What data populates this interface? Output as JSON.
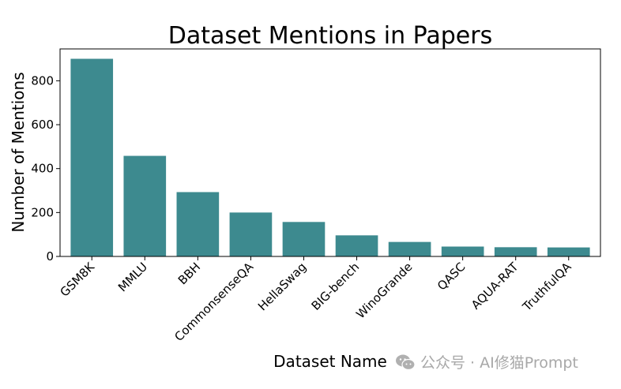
{
  "chart_data": {
    "type": "bar",
    "title": "Dataset Mentions in Papers",
    "xlabel": "Dataset Name",
    "ylabel": "Number of Mentions",
    "categories": [
      "GSM8K",
      "MMLU",
      "BBH",
      "CommonsenseQA",
      "HellaSwag",
      "BIG-bench",
      "WinoGrande",
      "QASC",
      "AQUA-RAT",
      "TruthfulQA"
    ],
    "values": [
      900,
      458,
      293,
      200,
      157,
      96,
      66,
      45,
      42,
      41
    ],
    "ylim": [
      0,
      945
    ],
    "yticks": [
      0,
      200,
      400,
      600,
      800
    ],
    "bar_color": "#3d8a8f",
    "grid": false,
    "x_tick_rotation": 45
  },
  "watermark": {
    "text": "公众号 · AI修猫Prompt",
    "icon": "wechat-icon"
  }
}
